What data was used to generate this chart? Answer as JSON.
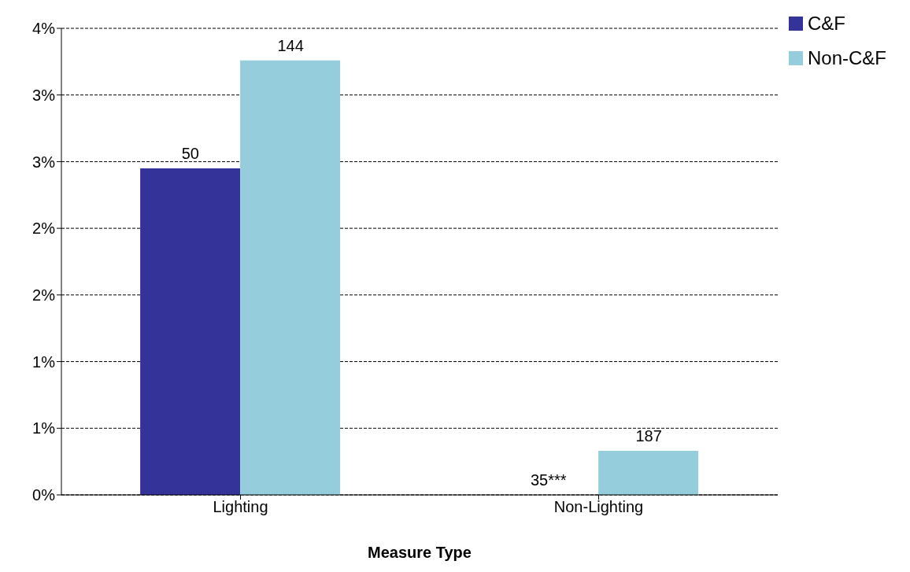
{
  "chart_data": {
    "type": "bar",
    "xlabel": "Measure Type",
    "categories": [
      "Lighting",
      "Non-Lighting"
    ],
    "series": [
      {
        "name": "C&F",
        "color": "#333399",
        "values": [
          2.45,
          null
        ]
      },
      {
        "name": "Non-C&F",
        "color": "#96cddc",
        "values": [
          3.26,
          0.33
        ]
      }
    ],
    "annotations": [
      {
        "text": "50",
        "x": "Lighting",
        "y": 2.45
      },
      {
        "text": "144",
        "x": "Lighting",
        "y": 3.26
      },
      {
        "text": "35***",
        "x": "Non-Lighting",
        "y": 0
      },
      {
        "text": "187",
        "x": "Non-Lighting",
        "y": 0.33
      }
    ],
    "ylim": [
      0,
      3.5
    ],
    "yticks": [
      {
        "value": 0,
        "label": "0%"
      },
      {
        "value": 0.5,
        "label": "1%"
      },
      {
        "value": 1,
        "label": "1%"
      },
      {
        "value": 1.5,
        "label": "2%"
      },
      {
        "value": 2,
        "label": "2%"
      },
      {
        "value": 2.5,
        "label": "3%"
      },
      {
        "value": 3,
        "label": "3%"
      },
      {
        "value": 3.5,
        "label": "4%"
      }
    ],
    "grid": "y",
    "legend": "top right"
  }
}
